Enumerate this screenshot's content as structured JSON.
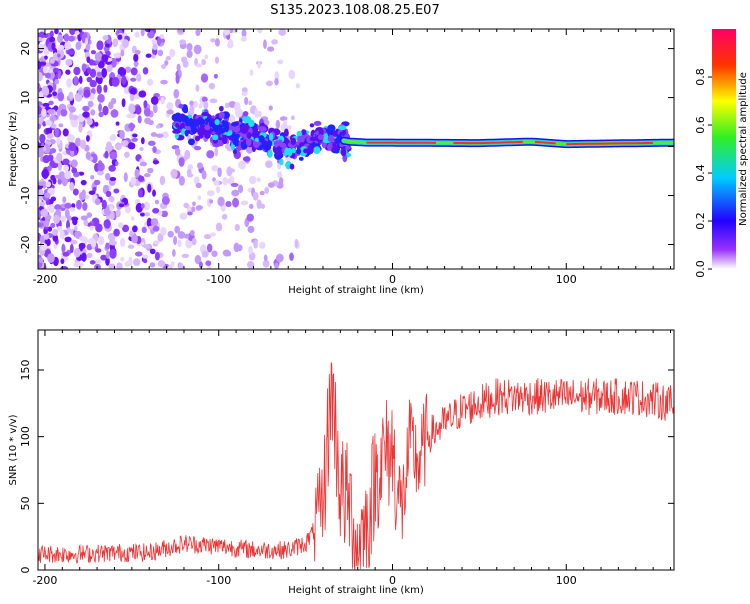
{
  "title": "S135.2023.108.08.25.E07",
  "colors": {
    "snr_line": "#ee3333",
    "cb_top": "#ff0066",
    "cb_mid": "#33dd33",
    "cb_low": "#6600ff"
  },
  "chart_data": [
    {
      "type": "heatmap",
      "xlabel": "Height of straight line (km)",
      "ylabel": "Frequency (Hz)",
      "xlim": [
        -204,
        162
      ],
      "ylim": [
        -25,
        24
      ],
      "x_ticks": [
        -200,
        -100,
        0,
        100
      ],
      "y_ticks": [
        -20,
        -10,
        0,
        10,
        20
      ],
      "colorbar": {
        "label": "Normalized spectral amplitude",
        "range": [
          0.0,
          1.0
        ],
        "ticks": [
          0.0,
          0.2,
          0.4,
          0.6,
          0.8
        ],
        "tick_labels": [
          "0.0",
          "0.2",
          "0.4",
          "0.6",
          "0.8"
        ]
      },
      "ridge": [
        {
          "x": -120,
          "f": 5
        },
        {
          "x": -100,
          "f": 3.5
        },
        {
          "x": -80,
          "f": 2
        },
        {
          "x": -60,
          "f": -0.5
        },
        {
          "x": -40,
          "f": 2
        },
        {
          "x": -25,
          "f": 1
        },
        {
          "x": -15,
          "f": 0.8
        },
        {
          "x": 0,
          "f": 0.8
        },
        {
          "x": 50,
          "f": 0.7
        },
        {
          "x": 80,
          "f": 1
        },
        {
          "x": 100,
          "f": 0.5
        },
        {
          "x": 162,
          "f": 0.8
        }
      ]
    },
    {
      "type": "line",
      "xlabel": "Height of straight line (km)",
      "ylabel": "SNR (10 * v/v)",
      "xlim": [
        -204,
        162
      ],
      "ylim": [
        0,
        180
      ],
      "x_ticks": [
        -200,
        -100,
        0,
        100
      ],
      "y_ticks": [
        0,
        50,
        100,
        150
      ],
      "series": [
        {
          "x": [
            -204,
            -180,
            -160,
            -140,
            -120,
            -100,
            -80,
            -60,
            -50,
            -45,
            -40,
            -35,
            -30,
            -25,
            -20,
            -15,
            -10,
            -5,
            0,
            5,
            10,
            15,
            20,
            30,
            40,
            50,
            60,
            80,
            100,
            120,
            140,
            160,
            162
          ],
          "y": [
            12,
            12,
            13,
            13,
            20,
            18,
            15,
            15,
            20,
            30,
            50,
            140,
            60,
            50,
            20,
            30,
            70,
            85,
            90,
            40,
            95,
            80,
            100,
            110,
            120,
            125,
            130,
            130,
            130,
            130,
            130,
            125,
            120
          ]
        }
      ]
    }
  ]
}
